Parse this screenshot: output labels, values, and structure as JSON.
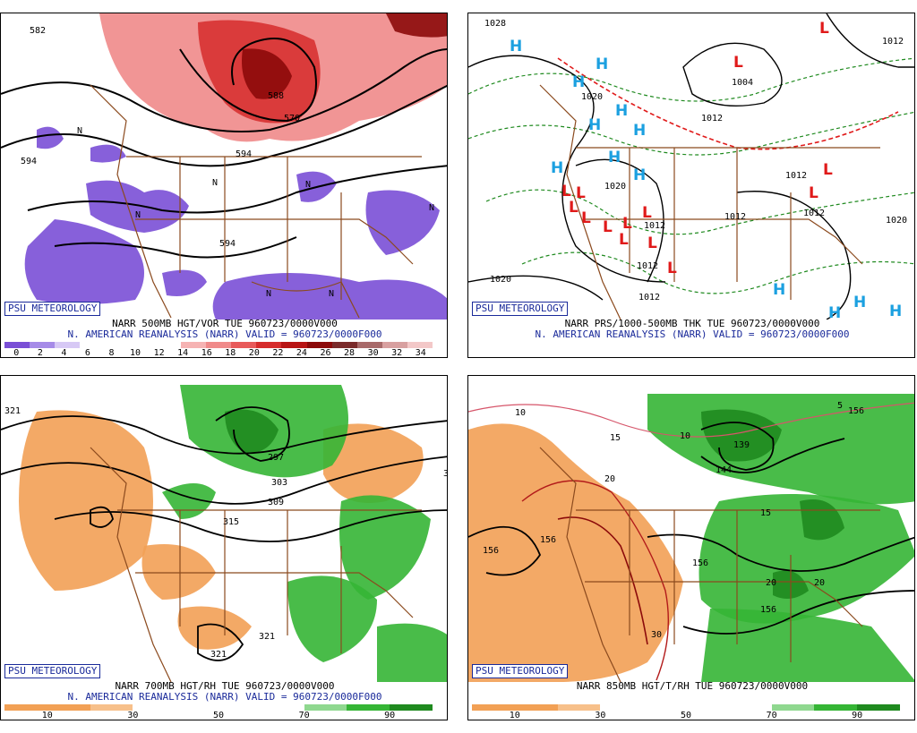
{
  "colors": {
    "border": "#8b4a1e",
    "psu_text": "#1a2a9a",
    "high": "#1ba0e0",
    "low": "#e01a1a",
    "dry": "#f2a055",
    "moist": "#35b535"
  },
  "panels": [
    {
      "id": "p500vor",
      "psu_label": "PSU METEOROLOGY",
      "line1": "NARR 500MB HGT/VOR TUE 960723/0000V000",
      "line2": "N. AMERICAN REANALYSIS (NARR) VALID = 960723/0000F000",
      "colorbar": {
        "colors": [
          "#7a4fd6",
          "#a68be8",
          "#d7c9f5",
          "#ffffff",
          "#ffffff",
          "#ffffff",
          "#ffffff",
          "#f6b3b3",
          "#f08a8a",
          "#e85a5a",
          "#d62c2c",
          "#b81414",
          "#8c0a0a",
          "#7a2a2a",
          "#a86a6a",
          "#d8a0a0",
          "#f3c8c8"
        ],
        "ticks": [
          "0",
          "2",
          "4",
          "6",
          "8",
          "10",
          "12",
          "14",
          "16",
          "18",
          "20",
          "22",
          "24",
          "26",
          "28",
          "30",
          "32",
          "34"
        ]
      },
      "labels": [
        "582",
        "594",
        "588",
        "570",
        "594",
        "594",
        "N",
        "N",
        "N",
        "N",
        "N",
        "N",
        "N"
      ]
    },
    {
      "id": "pthk",
      "psu_label": "PSU METEOROLOGY",
      "line1": "NARR PRS/1000-500MB THK TUE 960723/0000V000",
      "line2": "N. AMERICAN REANALYSIS (NARR) VALID = 960723/0000F000",
      "labels": [
        "1028",
        "1004",
        "1012",
        "1020",
        "1012",
        "1012",
        "1012",
        "1020",
        "1012",
        "1012",
        "1020",
        "1020",
        "1012",
        "1012"
      ],
      "highs": [
        "H",
        "H",
        "H",
        "H",
        "H",
        "H",
        "H",
        "H",
        "H",
        "H",
        "H",
        "H",
        "H"
      ],
      "lows": [
        "L",
        "L",
        "L",
        "L",
        "L",
        "L",
        "L",
        "L",
        "L",
        "L",
        "L",
        "L",
        "L",
        "L"
      ]
    },
    {
      "id": "p700rh",
      "psu_label": "PSU METEOROLOGY",
      "line1": "NARR 700MB HGT/RH TUE 960723/0000V000",
      "line2": "N. AMERICAN REANALYSIS (NARR) VALID = 960723/0000F000",
      "colorbar": {
        "colors": [
          "#f2a055",
          "#f2a055",
          "#f7c08a",
          "#ffffff",
          "#ffffff",
          "#ffffff",
          "#ffffff",
          "#8fd88f",
          "#35b535",
          "#1f8a1f"
        ],
        "ticks": [
          "10",
          "30",
          "50",
          "70",
          "90"
        ]
      },
      "labels": [
        "321",
        "297",
        "303",
        "309",
        "315",
        "321",
        "321",
        "3"
      ]
    },
    {
      "id": "p850t",
      "psu_label": "PSU METEOROLOGY",
      "line1": "NARR 850MB HGT/T/RH TUE 960723/0000V000",
      "colorbar": {
        "colors": [
          "#f2a055",
          "#f2a055",
          "#f7c08a",
          "#ffffff",
          "#ffffff",
          "#ffffff",
          "#ffffff",
          "#8fd88f",
          "#35b535",
          "#1f8a1f"
        ],
        "ticks": [
          "10",
          "30",
          "50",
          "70",
          "90"
        ]
      },
      "labels": [
        "10",
        "15",
        "10",
        "20",
        "139",
        "144",
        "156",
        "156",
        "156",
        "15",
        "156",
        "156",
        "20",
        "20",
        "30",
        "5",
        "156"
      ]
    }
  ]
}
